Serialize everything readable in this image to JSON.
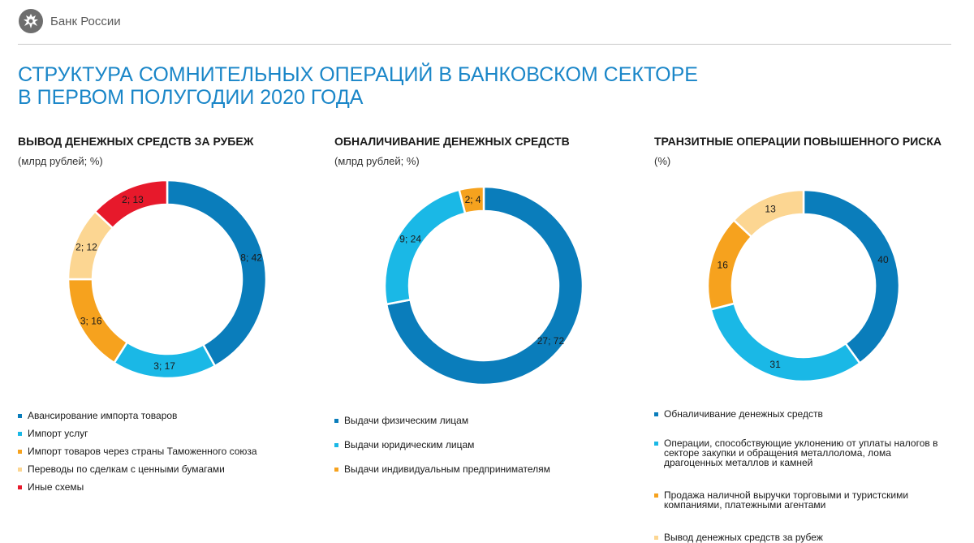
{
  "header": {
    "bank_name": "Банк России"
  },
  "page": {
    "title_line1": "СТРУКТУРА СОМНИТЕЛЬНЫХ ОПЕРАЦИЙ В БАНКОВСКОМ СЕКТОРЕ",
    "title_line2": "В ПЕРВОМ ПОЛУГОДИИ 2020 ГОДА"
  },
  "colors": {
    "dark_blue": "#0a7dbb",
    "light_blue": "#1ab8e6",
    "orange": "#f6a21e",
    "light_orange": "#fcd692",
    "red": "#e7192b",
    "title_blue": "#1a86c8"
  },
  "chart_data": [
    {
      "type": "pie",
      "title": "ВЫВОД ДЕНЕЖНЫХ СРЕДСТВ ЗА РУБЕЖ",
      "subtitle": "(млрд рублей; %)",
      "donut": true,
      "slices": [
        {
          "name": "Авансирование импорта товаров",
          "value": 42,
          "label": "8; 42",
          "color": "#0a7dbb"
        },
        {
          "name": "Импорт услуг",
          "value": 17,
          "label": "3; 17",
          "color": "#1ab8e6"
        },
        {
          "name": "Импорт товаров через страны Таможенного союза",
          "value": 16,
          "label": "3; 16",
          "color": "#f6a21e"
        },
        {
          "name": "Переводы по сделкам с ценными бумагами",
          "value": 12,
          "label": "2; 12",
          "color": "#fcd692"
        },
        {
          "name": "Иные схемы",
          "value": 13,
          "label": "2; 13",
          "color": "#e7192b"
        }
      ]
    },
    {
      "type": "pie",
      "title": "ОБНАЛИЧИВАНИЕ ДЕНЕЖНЫХ СРЕДСТВ",
      "subtitle": "(млрд рублей; %)",
      "donut": true,
      "slices": [
        {
          "name": "Выдачи физическим лицам",
          "value": 72,
          "label": "27; 72",
          "color": "#0a7dbb"
        },
        {
          "name": "Выдачи юридическим лицам",
          "value": 24,
          "label": "9; 24",
          "color": "#1ab8e6"
        },
        {
          "name": "Выдачи индивидуальным предпринимателям",
          "value": 4,
          "label": "2; 4",
          "color": "#f6a21e"
        }
      ]
    },
    {
      "type": "pie",
      "title": "ТРАНЗИТНЫЕ ОПЕРАЦИИ ПОВЫШЕННОГО РИСКА",
      "subtitle": "(%)",
      "donut": true,
      "slices": [
        {
          "name": "Обналичивание денежных средств",
          "value": 40,
          "label": "40",
          "color": "#0a7dbb"
        },
        {
          "name": "Операции, способствующие уклонению от уплаты налогов в секторе закупки и обращения металлолома, лома драгоценных металлов и камней",
          "value": 31,
          "label": "31",
          "color": "#1ab8e6"
        },
        {
          "name": "Продажа наличной выручки торговыми и туристскими компаниями, платежными агентами",
          "value": 16,
          "label": "16",
          "color": "#f6a21e"
        },
        {
          "name": "Вывод денежных средств за рубеж",
          "value": 13,
          "label": "13",
          "color": "#fcd692"
        }
      ]
    }
  ]
}
